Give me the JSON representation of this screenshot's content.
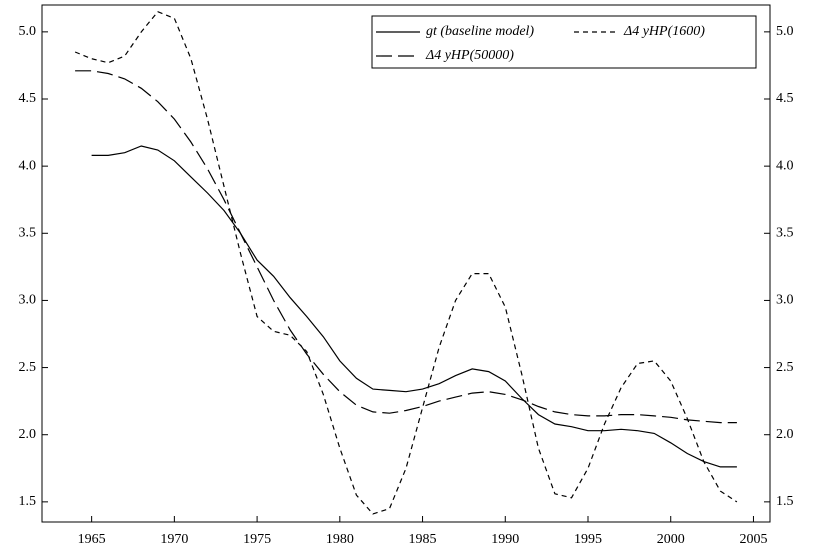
{
  "chart_data": {
    "type": "line",
    "x": [
      1964,
      1965,
      1966,
      1967,
      1968,
      1969,
      1970,
      1971,
      1972,
      1973,
      1974,
      1975,
      1976,
      1977,
      1978,
      1979,
      1980,
      1981,
      1982,
      1983,
      1984,
      1985,
      1986,
      1987,
      1988,
      1989,
      1990,
      1991,
      1992,
      1993,
      1994,
      1995,
      1996,
      1997,
      1998,
      1999,
      2000,
      2001,
      2002,
      2003,
      2004
    ],
    "series": [
      {
        "name": "gt (baseline model)",
        "color": "#000000",
        "dash": "none",
        "values": [
          null,
          4.08,
          4.08,
          4.1,
          4.15,
          4.12,
          4.04,
          3.92,
          3.8,
          3.67,
          3.5,
          3.3,
          3.18,
          3.02,
          2.88,
          2.73,
          2.55,
          2.42,
          2.34,
          2.33,
          2.32,
          2.34,
          2.38,
          2.44,
          2.49,
          2.47,
          2.4,
          2.27,
          2.15,
          2.08,
          2.06,
          2.03,
          2.03,
          2.04,
          2.03,
          2.01,
          1.94,
          1.86,
          1.8,
          1.76,
          1.76
        ]
      },
      {
        "name": "Δ4 yHP(1600)",
        "color": "#000000",
        "dash": "5,4",
        "values": [
          4.85,
          4.8,
          4.77,
          4.82,
          5.0,
          5.15,
          5.1,
          4.8,
          4.35,
          3.85,
          3.35,
          2.88,
          2.77,
          2.74,
          2.62,
          2.3,
          1.9,
          1.55,
          1.41,
          1.45,
          1.75,
          2.2,
          2.65,
          3.0,
          3.2,
          3.2,
          2.95,
          2.45,
          1.9,
          1.56,
          1.53,
          1.75,
          2.08,
          2.35,
          2.53,
          2.55,
          2.4,
          2.12,
          1.8,
          1.58,
          1.5
        ]
      },
      {
        "name": "Δ4 yHP(50000)",
        "color": "#000000",
        "dash": "16,6",
        "values": [
          4.71,
          4.71,
          4.69,
          4.65,
          4.58,
          4.48,
          4.35,
          4.18,
          3.98,
          3.75,
          3.5,
          3.25,
          3.0,
          2.78,
          2.6,
          2.45,
          2.32,
          2.22,
          2.17,
          2.16,
          2.18,
          2.21,
          2.25,
          2.28,
          2.31,
          2.32,
          2.3,
          2.26,
          2.21,
          2.17,
          2.15,
          2.14,
          2.14,
          2.15,
          2.15,
          2.14,
          2.13,
          2.11,
          2.1,
          2.09,
          2.09
        ]
      }
    ],
    "xlim": [
      1962,
      2006
    ],
    "xticks": [
      1965,
      1970,
      1975,
      1980,
      1985,
      1990,
      1995,
      2000,
      2005
    ],
    "ylim": [
      1.35,
      5.2
    ],
    "yticks": [
      {
        "value": 1.5,
        "label": "1.5"
      },
      {
        "value": 2.0,
        "label": "2.0"
      },
      {
        "value": 2.5,
        "label": "2.5"
      },
      {
        "value": 3.0,
        "label": "3.0"
      },
      {
        "value": 3.5,
        "label": "3.5"
      },
      {
        "value": 4.0,
        "label": "4.0"
      },
      {
        "value": 4.5,
        "label": "4.5"
      },
      {
        "value": 5.0,
        "label": "5.0"
      }
    ],
    "grid": false,
    "legend": "top-right"
  }
}
